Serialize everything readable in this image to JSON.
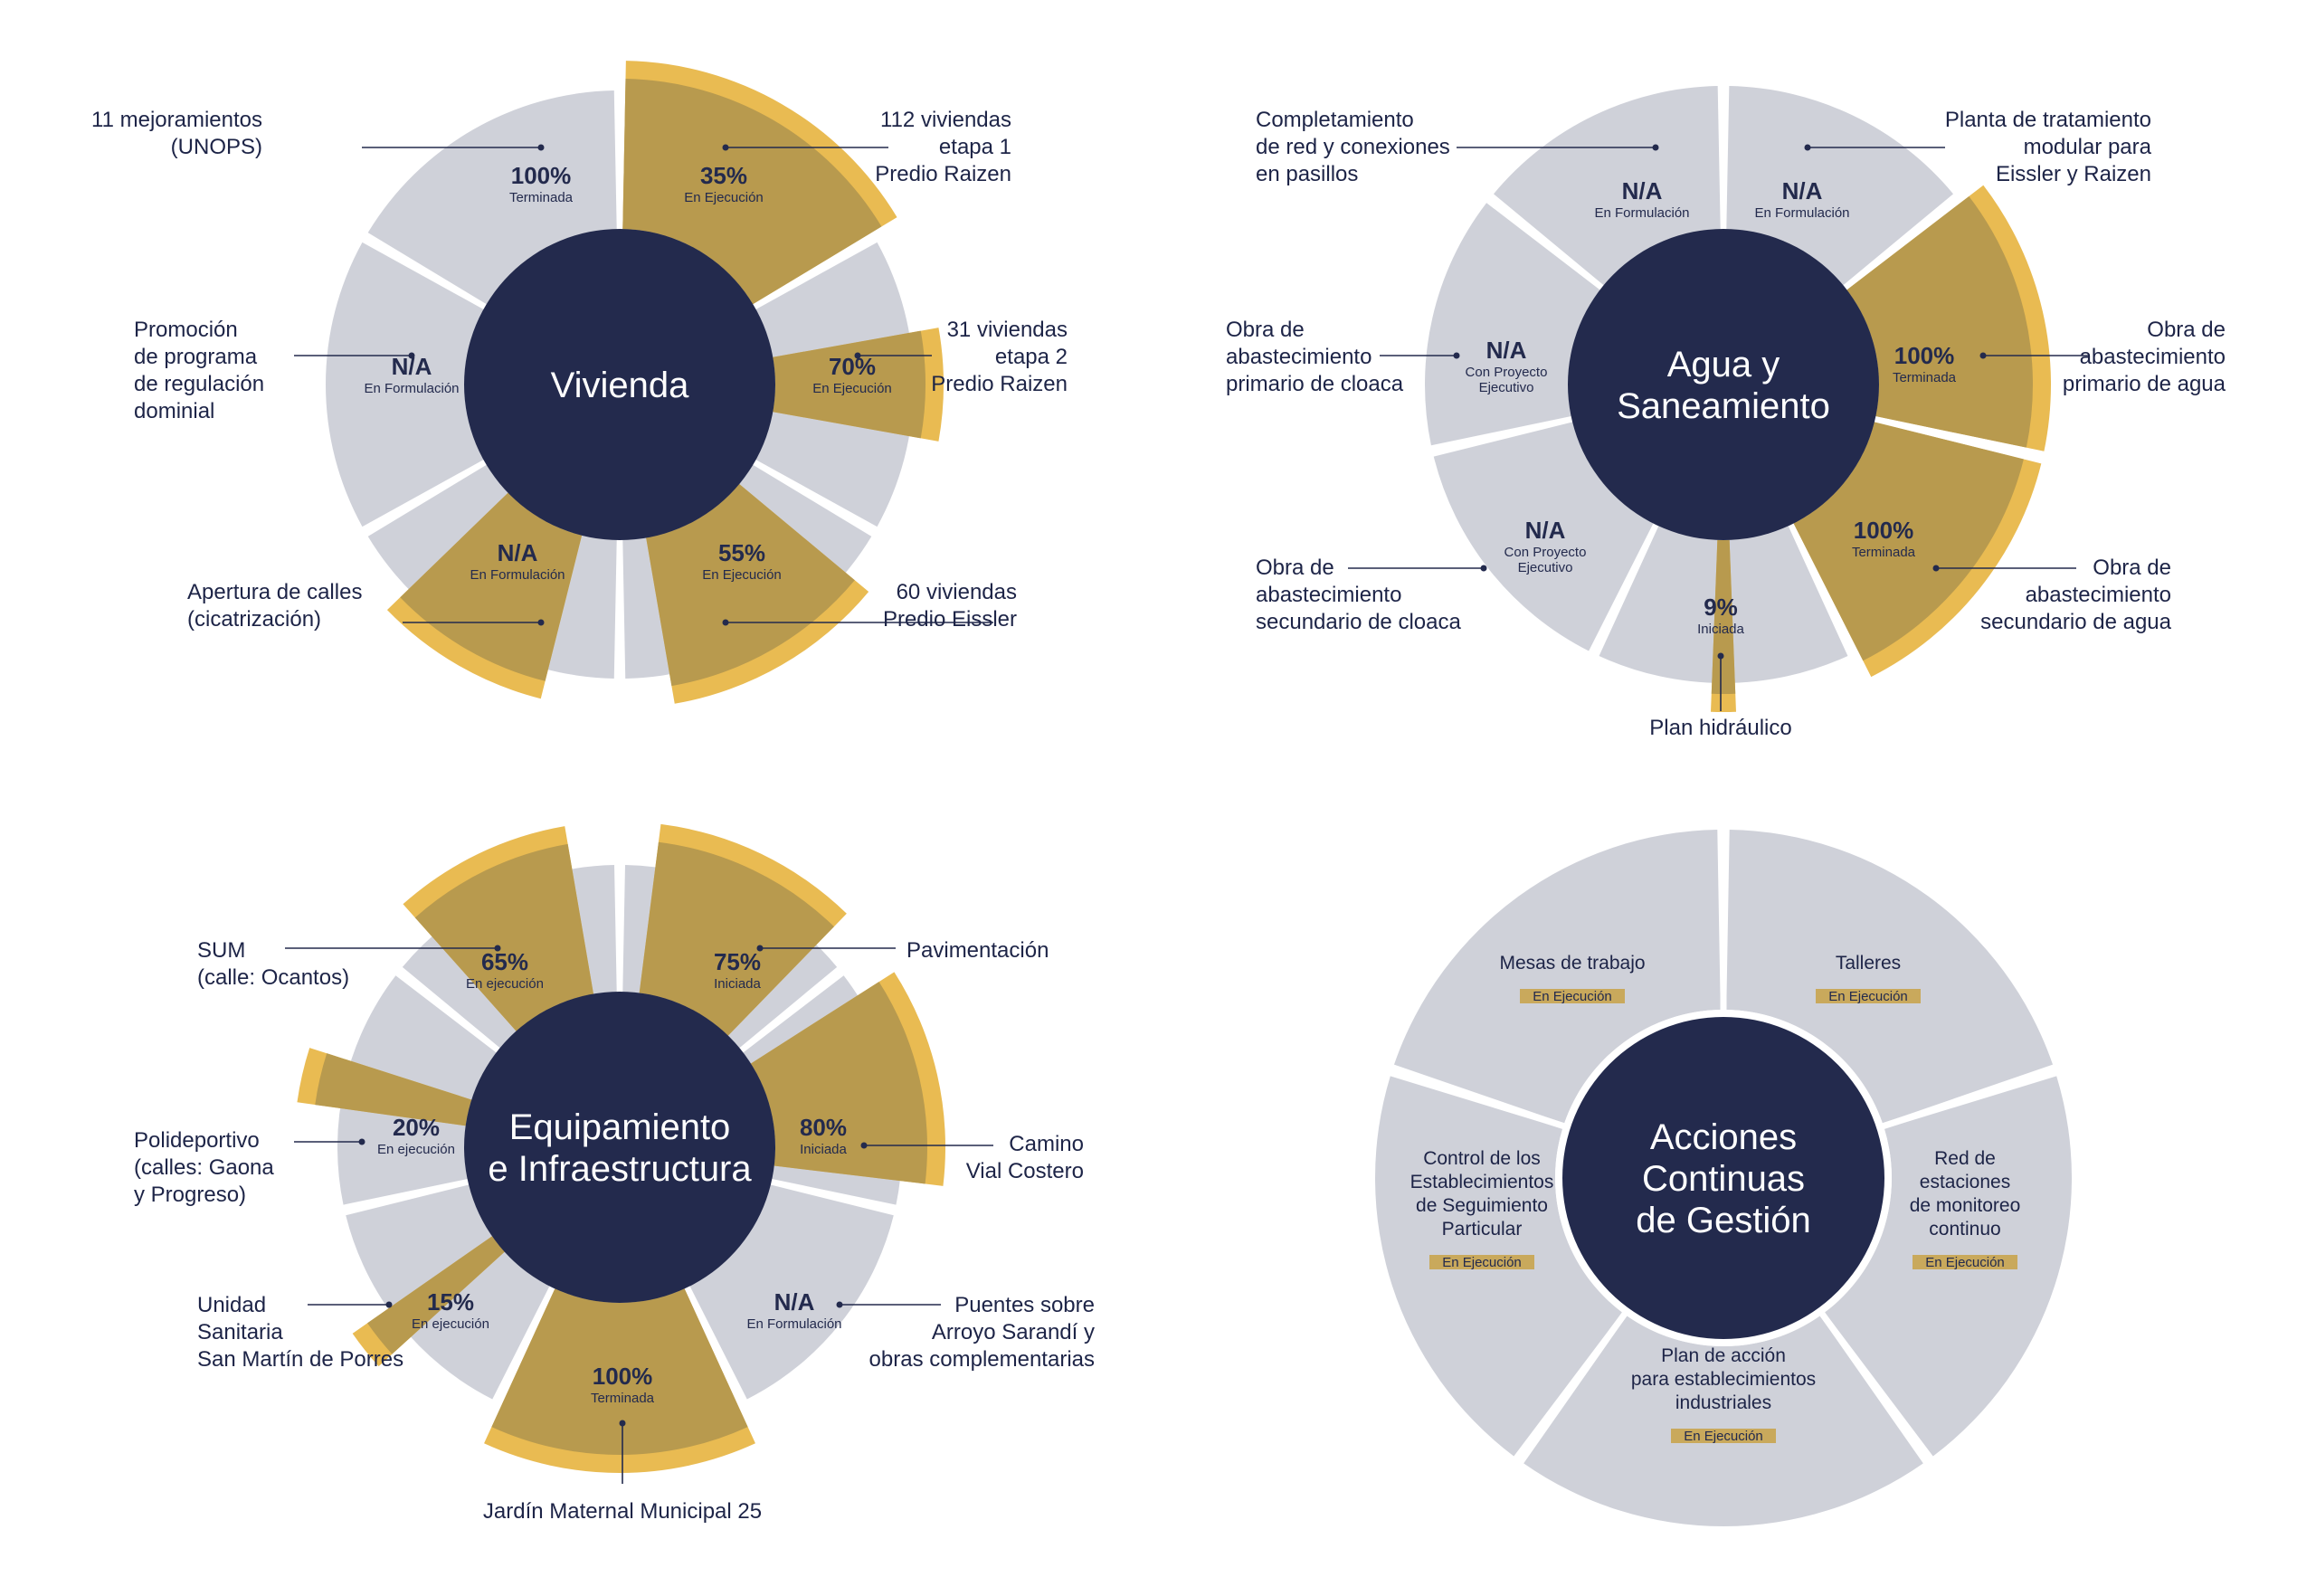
{
  "colors": {
    "background": "#ffffff",
    "segment_bg": "#cfd1d9",
    "segment_fill": "#b89a4e",
    "segment_accent": "#e9bb52",
    "center": "#232a4d",
    "text": "#1d2447",
    "badge": "#c9a95c"
  },
  "diagrams": [
    {
      "id": "vivienda",
      "center_label": [
        "Vivienda"
      ],
      "segments": [
        {
          "percent_text": "100%",
          "status": [
            "Terminada"
          ],
          "progress": 1.0,
          "label": [
            "11 mejoramientos",
            "(UNOPS)"
          ]
        },
        {
          "percent_text": "35%",
          "status": [
            "En Ejecución"
          ],
          "progress": 0.35,
          "label": [
            "112 viviendas",
            "etapa 1",
            "Predio Raizen"
          ]
        },
        {
          "percent_text": "70%",
          "status": [
            "En Ejecución"
          ],
          "progress": 0.7,
          "label": [
            "31 viviendas",
            "etapa 2",
            "Predio Raizen"
          ]
        },
        {
          "percent_text": "55%",
          "status": [
            "En Ejecución"
          ],
          "progress": 0.55,
          "label": [
            "60 viviendas",
            "Predio Eissler"
          ]
        },
        {
          "percent_text": "N/A",
          "status": [
            "En Formulación"
          ],
          "progress": 0,
          "label": [
            "Apertura de calles",
            "(cicatrización)"
          ]
        },
        {
          "percent_text": "N/A",
          "status": [
            "En Formulación"
          ],
          "progress": 0,
          "label": [
            "Promoción",
            "de programa",
            "de regulación",
            "dominial"
          ]
        }
      ]
    },
    {
      "id": "agua",
      "center_label": [
        "Agua y",
        "Saneamiento"
      ],
      "segments": [
        {
          "percent_text": "N/A",
          "status": [
            "En Formulación"
          ],
          "progress": 0,
          "label": [
            "Planta de tratamiento",
            "modular para",
            "Eissler y Raizen"
          ]
        },
        {
          "percent_text": "100%",
          "status": [
            "Terminada"
          ],
          "progress": 1.0,
          "label": [
            "Obra de",
            "abastecimiento",
            "primario de agua"
          ]
        },
        {
          "percent_text": "100%",
          "status": [
            "Terminada"
          ],
          "progress": 1.0,
          "label": [
            "Obra de",
            "abastecimiento",
            "secundario de agua"
          ]
        },
        {
          "percent_text": "9%",
          "status": [
            "Iniciada"
          ],
          "progress": 0.09,
          "label": [
            "Plan hidráulico"
          ]
        },
        {
          "percent_text": "N/A",
          "status": [
            "Con Proyecto",
            "Ejecutivo"
          ],
          "progress": 0,
          "label": [
            "Obra de",
            "abastecimiento",
            "secundario de cloaca"
          ]
        },
        {
          "percent_text": "N/A",
          "status": [
            "Con Proyecto",
            "Ejecutivo"
          ],
          "progress": 0,
          "label": [
            "Obra de",
            "abastecimiento",
            "primario de cloaca"
          ]
        },
        {
          "percent_text": "N/A",
          "status": [
            "En Formulación"
          ],
          "progress": 0,
          "label": [
            "Completamiento",
            "de red y conexiones",
            "en pasillos"
          ]
        }
      ]
    },
    {
      "id": "equipamiento",
      "center_label": [
        "Equipamiento",
        "e Infraestructura"
      ],
      "segments": [
        {
          "percent_text": "75%",
          "status": [
            "Iniciada"
          ],
          "progress": 0.75,
          "label": [
            "Pavimentación"
          ]
        },
        {
          "percent_text": "80%",
          "status": [
            "Iniciada"
          ],
          "progress": 0.8,
          "label": [
            "Camino",
            "Vial Costero"
          ]
        },
        {
          "percent_text": "N/A",
          "status": [
            "En Formulación"
          ],
          "progress": 0,
          "label": [
            "Puentes sobre",
            "Arroyo Sarandí y",
            "obras complementarias"
          ]
        },
        {
          "percent_text": "100%",
          "status": [
            "Terminada"
          ],
          "progress": 1.0,
          "label": [
            "Jardín Maternal Municipal 25"
          ]
        },
        {
          "percent_text": "15%",
          "status": [
            "En ejecución"
          ],
          "progress": 0.15,
          "label": [
            "Unidad",
            "Sanitaria",
            "San Martín de Porres"
          ]
        },
        {
          "percent_text": "20%",
          "status": [
            "En ejecución"
          ],
          "progress": 0.2,
          "label": [
            "Polideportivo",
            "(calles: Gaona",
            "y Progreso)"
          ]
        },
        {
          "percent_text": "65%",
          "status": [
            "En ejecución"
          ],
          "progress": 0.65,
          "label": [
            "SUM",
            "(calle: Ocantos)"
          ]
        }
      ]
    },
    {
      "id": "acciones",
      "center_label": [
        "Acciones",
        "Continuas",
        "de Gestión"
      ],
      "segments": [
        {
          "inner_label": [
            "Talleres"
          ],
          "badge": "En Ejecución"
        },
        {
          "inner_label": [
            "Red de",
            "estaciones",
            "de monitoreo",
            "continuo"
          ],
          "badge": "En Ejecución"
        },
        {
          "inner_label": [
            "Plan de acción",
            "para establecimientos",
            "industriales"
          ],
          "badge": "En Ejecución"
        },
        {
          "inner_label": [
            "Control de los",
            "Establecimientos",
            "de Seguimiento",
            "Particular"
          ],
          "badge": "En Ejecución"
        },
        {
          "inner_label": [
            "Mesas de trabajo"
          ],
          "badge": "En Ejecución"
        }
      ]
    }
  ]
}
